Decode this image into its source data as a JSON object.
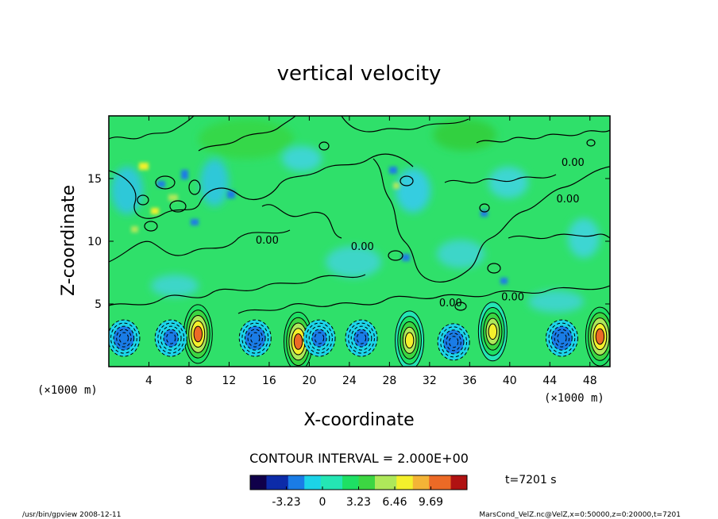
{
  "chart_data": {
    "type": "heatmap",
    "title": "vertical velocity",
    "xlabel": "X-coordinate",
    "ylabel": "Z-coordinate",
    "x_unit_left": "(×1000 m)",
    "x_unit_right": "(×1000 m)",
    "xlim": [
      0,
      50
    ],
    "ylim": [
      0,
      20
    ],
    "x_ticks": [
      4,
      8,
      12,
      16,
      20,
      24,
      28,
      32,
      36,
      40,
      44,
      48
    ],
    "y_ticks": [
      5,
      10,
      15
    ],
    "contour_interval_text": "CONTOUR INTERVAL = 2.000E+00",
    "contour_labels": [
      {
        "text": "0.00",
        "x": 15.8,
        "y": 9.8
      },
      {
        "text": "0.00",
        "x": 25.3,
        "y": 9.3
      },
      {
        "text": "0.00",
        "x": 46.3,
        "y": 16.0
      },
      {
        "text": "0.00",
        "x": 45.8,
        "y": 13.1
      },
      {
        "text": "0.00",
        "x": 34.1,
        "y": 4.8
      },
      {
        "text": "0.00",
        "x": 40.3,
        "y": 5.3
      }
    ],
    "colorbar": {
      "min": -6.46,
      "max": 12.92,
      "tick_values": [
        -3.23,
        0,
        3.23,
        6.46,
        9.69
      ],
      "tick_labels": [
        "-3.23",
        "0",
        "3.23",
        "6.46",
        "9.69"
      ],
      "colors": [
        "#10004a",
        "#0c2ba8",
        "#1a7ce6",
        "#1cd3e8",
        "#24e6b4",
        "#1ee064",
        "#3cd642",
        "#aee85a",
        "#f4f02c",
        "#f4b436",
        "#ec6a26",
        "#b01212"
      ]
    },
    "features": [
      {
        "type": "updraft",
        "x": 8.9,
        "z": 2.6,
        "peak": 9.69
      },
      {
        "type": "updraft",
        "x": 18.9,
        "z": 2.0,
        "peak": 9.69
      },
      {
        "type": "updraft",
        "x": 30.0,
        "z": 2.1,
        "peak": 6.46
      },
      {
        "type": "updraft",
        "x": 38.3,
        "z": 2.8,
        "peak": 8.0
      },
      {
        "type": "updraft",
        "x": 49.0,
        "z": 2.4,
        "peak": 9.69
      },
      {
        "type": "downdraft",
        "x": 1.5,
        "z": 2.4,
        "peak": -3.23
      },
      {
        "type": "downdraft",
        "x": 6.2,
        "z": 2.4,
        "peak": -2.5
      },
      {
        "type": "downdraft",
        "x": 14.6,
        "z": 2.4,
        "peak": -3.23
      },
      {
        "type": "downdraft",
        "x": 21.0,
        "z": 2.4,
        "peak": -2.5
      },
      {
        "type": "downdraft",
        "x": 25.2,
        "z": 2.4,
        "peak": -2.5
      },
      {
        "type": "downdraft",
        "x": 34.4,
        "z": 2.1,
        "peak": -3.23
      },
      {
        "type": "downdraft",
        "x": 45.2,
        "z": 2.4,
        "peak": -3.0
      }
    ]
  },
  "time_label": "t=7201 s",
  "footer_left": "/usr/bin/gpview   2008-12-11",
  "footer_right": "MarsCond_VelZ.nc@VelZ,x=0:50000,z=0:20000,t=7201"
}
